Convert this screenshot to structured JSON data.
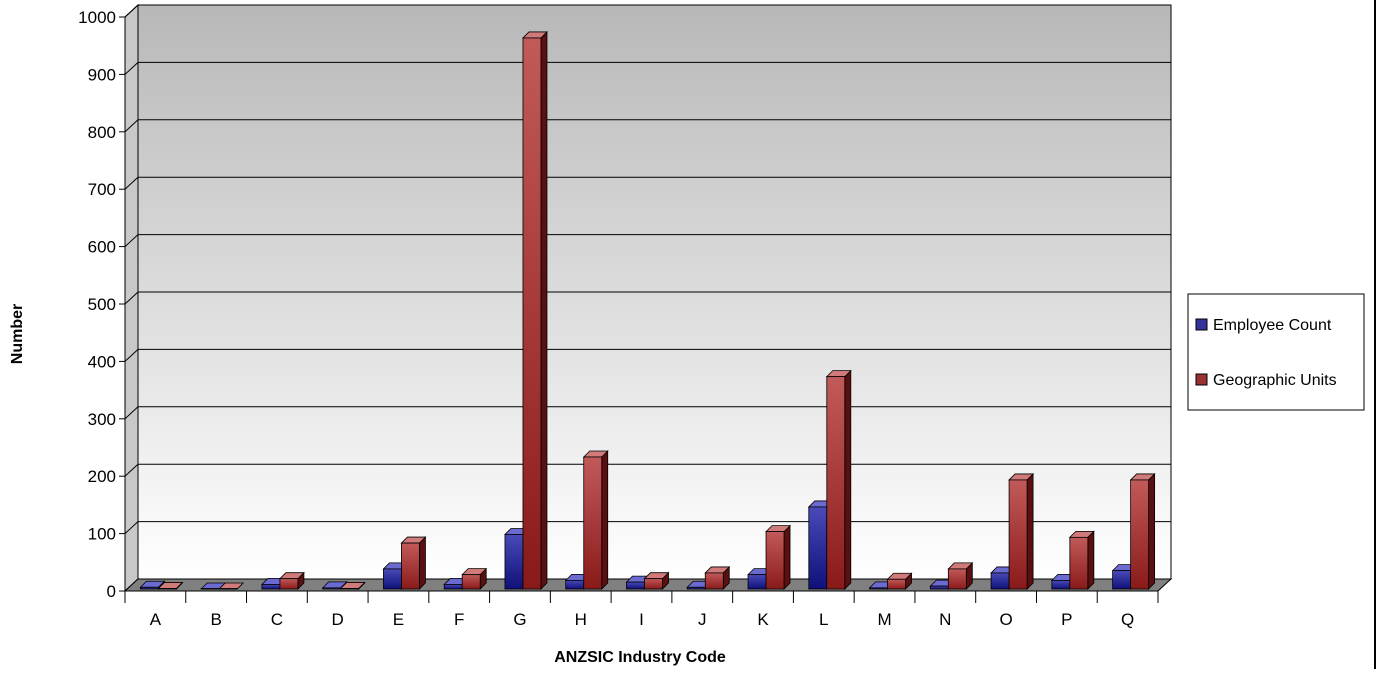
{
  "chart_data": {
    "type": "bar",
    "title": "",
    "xlabel": "ANZSIC Industry Code",
    "ylabel": "Number",
    "ylim": [
      0,
      1000
    ],
    "y_ticks": [
      0,
      100,
      200,
      300,
      400,
      500,
      600,
      700,
      800,
      900,
      1000
    ],
    "grid": true,
    "legend_position": "right",
    "categories": [
      "A",
      "B",
      "C",
      "D",
      "E",
      "F",
      "G",
      "H",
      "I",
      "J",
      "K",
      "L",
      "M",
      "N",
      "O",
      "P",
      "Q"
    ],
    "series": [
      {
        "name": "Employee Count",
        "color": "#333399",
        "values": [
          3,
          0,
          8,
          2,
          35,
          8,
          95,
          15,
          12,
          3,
          25,
          143,
          2,
          5,
          28,
          15,
          32
        ]
      },
      {
        "name": "Geographic Units",
        "color": "#993333",
        "values": [
          1,
          0,
          18,
          1,
          80,
          25,
          960,
          230,
          18,
          28,
          100,
          370,
          17,
          35,
          190,
          90,
          190
        ]
      }
    ]
  }
}
